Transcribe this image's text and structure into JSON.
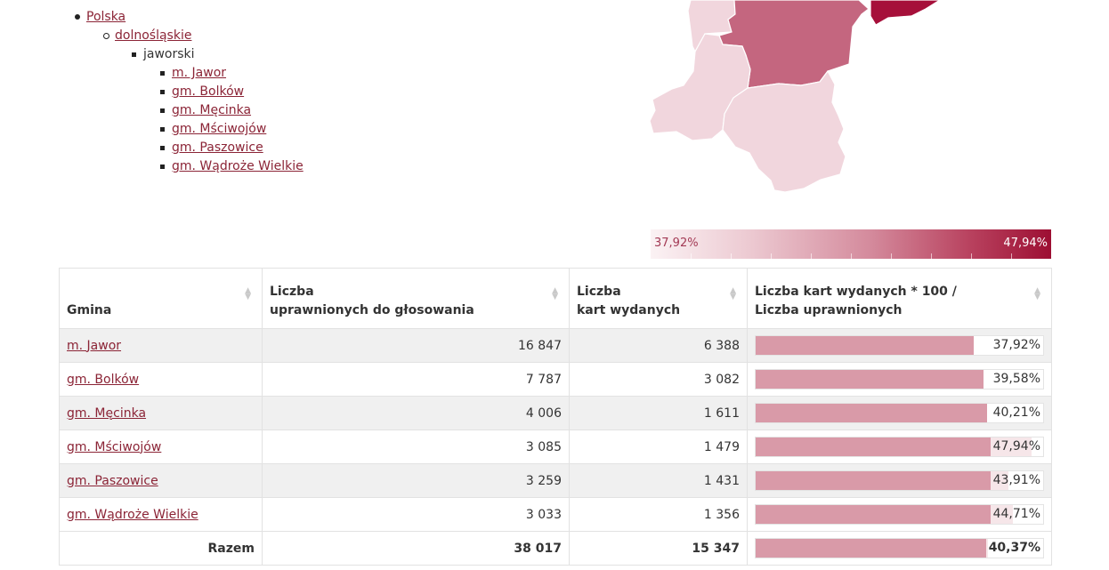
{
  "tree": {
    "country": "Polska",
    "province": "dolnośląskie",
    "county": "jaworski",
    "gminas": [
      "m. Jawor",
      "gm. Bolków",
      "gm. Męcinka",
      "gm. Mściwojów",
      "gm. Paszowice",
      "gm. Wądroże Wielkie"
    ]
  },
  "scale": {
    "min": "37,92%",
    "max": "47,94%"
  },
  "map_colors": {
    "light": "#f1d6dd",
    "lighter": "#f7e6ea",
    "medium": "#c4667f",
    "dark": "#a6103a"
  },
  "table": {
    "headers": {
      "gmina": "Gmina",
      "voters_line1": "Liczba",
      "voters_line2": "uprawnionych do głosowania",
      "cards_line1": "Liczba",
      "cards_line2": "kart wydanych",
      "ratio_line1": "Liczba kart wydanych * 100 /",
      "ratio_line2": "Liczba uprawnionych"
    },
    "rows": [
      {
        "name": "m. Jawor",
        "voters": "16 847",
        "cards": "6 388",
        "pct_label": "37,92%",
        "pct": 37.92
      },
      {
        "name": "gm. Bolków",
        "voters": "7 787",
        "cards": "3 082",
        "pct_label": "39,58%",
        "pct": 39.58
      },
      {
        "name": "gm. Męcinka",
        "voters": "4 006",
        "cards": "1 611",
        "pct_label": "40,21%",
        "pct": 40.21
      },
      {
        "name": "gm. Mściwojów",
        "voters": "3 085",
        "cards": "1 479",
        "pct_label": "47,94%",
        "pct": 47.94
      },
      {
        "name": "gm. Paszowice",
        "voters": "3 259",
        "cards": "1 431",
        "pct_label": "43,91%",
        "pct": 43.91
      },
      {
        "name": "gm. Wądroże Wielkie",
        "voters": "3 033",
        "cards": "1 356",
        "pct_label": "44,71%",
        "pct": 44.71
      }
    ],
    "total": {
      "label": "Razem",
      "voters": "38 017",
      "cards": "15 347",
      "pct_label": "40,37%",
      "pct": 40.37
    }
  }
}
